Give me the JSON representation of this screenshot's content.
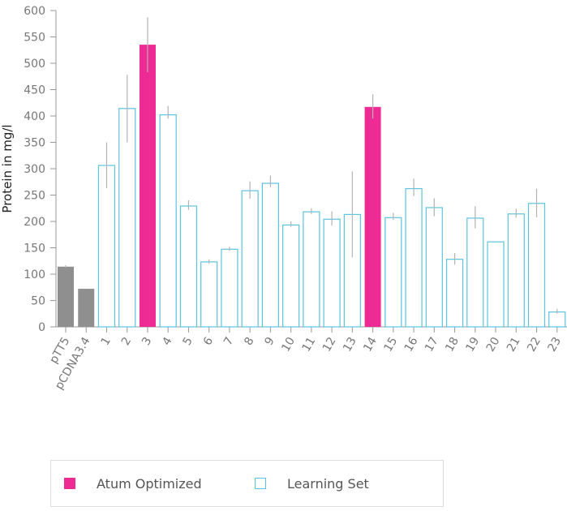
{
  "chart_data": {
    "type": "bar",
    "ylabel": "Protein in mg/l",
    "xlabel": "",
    "ylim": [
      0,
      600
    ],
    "yticks": [
      0,
      50,
      100,
      150,
      200,
      250,
      300,
      350,
      400,
      450,
      500,
      550,
      600
    ],
    "categories": [
      "pTT5",
      "pCDNA3.4",
      "1",
      "2",
      "3",
      "4",
      "5",
      "6",
      "7",
      "8",
      "9",
      "10",
      "11",
      "12",
      "13",
      "14",
      "15",
      "16",
      "17",
      "18",
      "19",
      "20",
      "21",
      "22",
      "23"
    ],
    "values": [
      115,
      73,
      307,
      415,
      536,
      403,
      230,
      124,
      148,
      259,
      273,
      194,
      219,
      205,
      214,
      418,
      208,
      263,
      227,
      129,
      207,
      162,
      215,
      235,
      29
    ],
    "error_low": [
      112,
      73,
      263,
      350,
      483,
      395,
      222,
      120,
      144,
      243,
      265,
      190,
      214,
      192,
      132,
      395,
      203,
      248,
      210,
      118,
      187,
      162,
      207,
      208,
      25
    ],
    "error_high": [
      117,
      73,
      350,
      478,
      587,
      419,
      240,
      128,
      152,
      276,
      287,
      200,
      225,
      219,
      295,
      441,
      216,
      281,
      244,
      140,
      229,
      162,
      224,
      262,
      34
    ],
    "groups": [
      "control",
      "control",
      "learning",
      "learning",
      "optimized",
      "learning",
      "learning",
      "learning",
      "learning",
      "learning",
      "learning",
      "learning",
      "learning",
      "learning",
      "learning",
      "optimized",
      "learning",
      "learning",
      "learning",
      "learning",
      "learning",
      "learning",
      "learning",
      "learning",
      "learning"
    ],
    "legend": [
      {
        "key": "optimized",
        "label": "Atum Optimized"
      },
      {
        "key": "learning",
        "label": "Learning Set"
      }
    ],
    "legend_position": "bottom-left",
    "grid": false
  },
  "colors": {
    "optimized": "#ee2a95",
    "learning": "#5bc4de",
    "control": "#8f8f8f",
    "error_bar": "#b3b3b3",
    "axis": "#999999"
  }
}
